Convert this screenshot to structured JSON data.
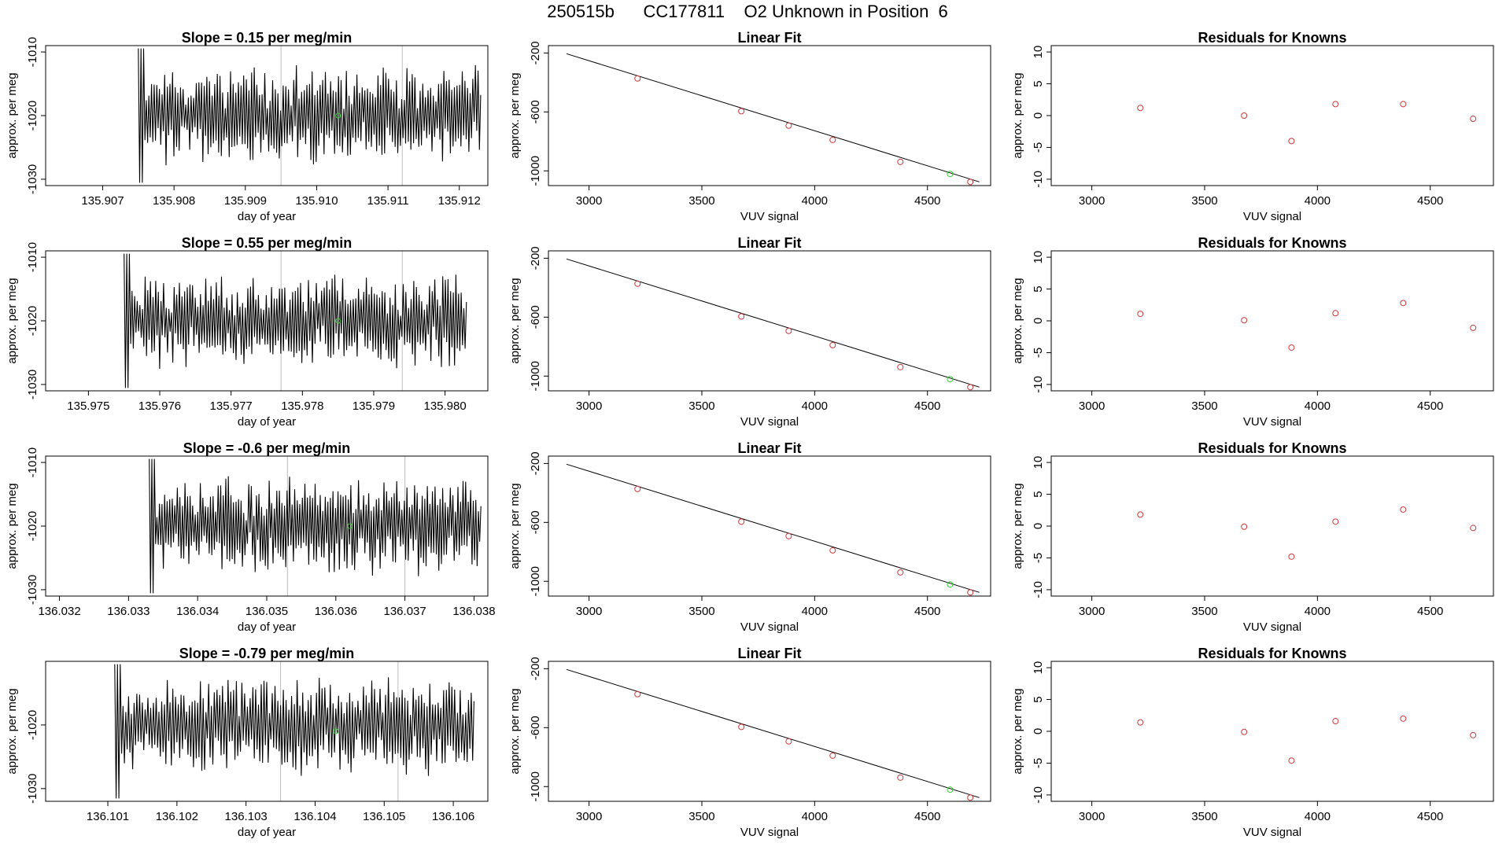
{
  "page": {
    "title": "250515b      CC177811    O2 Unknown in Position  6"
  },
  "colors": {
    "trace": "#000000",
    "known_point": "#cd3a3a",
    "unknown_point": "#33cc33",
    "marker_line": "#bdbdbd",
    "fit_line": "#000000"
  },
  "chart_data": [
    {
      "type": "line",
      "row": 0,
      "panel": "timeseries",
      "title": "Slope =  0.15  per meg/min",
      "xlabel": "day of year",
      "ylabel": "approx. per meg",
      "xlim": [
        135.9062,
        135.9124
      ],
      "ylim": [
        -1031,
        -1009
      ],
      "xticks": [
        135.907,
        135.908,
        135.909,
        135.91,
        135.911,
        135.912
      ],
      "xtick_labels": [
        "135.907",
        "135.908",
        "135.909",
        "135.910",
        "135.911",
        "135.912"
      ],
      "yticks": [
        -1010,
        -1020,
        -1030
      ],
      "ytick_labels": [
        "-1010",
        "-1020",
        "-1030"
      ],
      "trace_start": 135.9075,
      "trace_end": 135.9123,
      "trace_mean": -1020,
      "trace_amp": 6,
      "seed": 11,
      "markers": [
        135.9095,
        135.9112
      ],
      "unknown_point": {
        "x": 135.9103,
        "y": -1020
      }
    },
    {
      "type": "scatter",
      "row": 0,
      "panel": "fit",
      "title": "Linear Fit",
      "xlabel": "VUV signal",
      "ylabel": "approx. per meg",
      "xlim": [
        2820,
        4780
      ],
      "ylim": [
        -1100,
        -150
      ],
      "xticks": [
        3000,
        3500,
        4000,
        4500
      ],
      "xtick_labels": [
        "3000",
        "3500",
        "4000",
        "4500"
      ],
      "yticks": [
        -200,
        -600,
        -1000
      ],
      "ytick_labels": [
        "-200",
        "-600",
        "-1000"
      ],
      "fit_line": {
        "x": [
          2900,
          4730
        ],
        "y": [
          -205,
          -1075
        ]
      },
      "known": {
        "x": [
          3215,
          3675,
          3885,
          4080,
          4380,
          4690
        ],
        "y": [
          -373,
          -595,
          -693,
          -790,
          -939,
          -1075
        ]
      },
      "unknown": {
        "x": [
          4600
        ],
        "y": [
          -1021
        ]
      }
    },
    {
      "type": "scatter",
      "row": 0,
      "panel": "residuals",
      "title": "Residuals for Knowns",
      "xlabel": "VUV signal",
      "ylabel": "approx. per meg",
      "xlim": [
        2820,
        4780
      ],
      "ylim": [
        -11,
        11
      ],
      "xticks": [
        3000,
        3500,
        4000,
        4500
      ],
      "xtick_labels": [
        "3000",
        "3500",
        "4000",
        "4500"
      ],
      "yticks": [
        10,
        5,
        0,
        -5,
        -10
      ],
      "ytick_labels": [
        "10",
        "5",
        "0",
        "-5",
        "-10"
      ],
      "known": {
        "x": [
          3215,
          3675,
          3885,
          4080,
          4380,
          4690
        ],
        "y": [
          1.2,
          0,
          -4,
          1.8,
          1.8,
          -0.5
        ]
      }
    },
    {
      "type": "line",
      "row": 1,
      "panel": "timeseries",
      "title": "Slope =  0.55  per meg/min",
      "xlabel": "day of year",
      "ylabel": "approx. per meg",
      "xlim": [
        135.9744,
        135.9806
      ],
      "ylim": [
        -1031,
        -1009
      ],
      "xticks": [
        135.975,
        135.976,
        135.977,
        135.978,
        135.979,
        135.98
      ],
      "xtick_labels": [
        "135.975",
        "135.976",
        "135.977",
        "135.978",
        "135.979",
        "135.980"
      ],
      "yticks": [
        -1010,
        -1020,
        -1030
      ],
      "ytick_labels": [
        "-1010",
        "-1020",
        "-1030"
      ],
      "trace_start": 135.9755,
      "trace_end": 135.9803,
      "trace_mean": -1020,
      "trace_amp": 6,
      "seed": 23,
      "markers": [
        135.9777,
        135.9794
      ],
      "unknown_point": {
        "x": 135.9785,
        "y": -1020
      }
    },
    {
      "type": "scatter",
      "row": 1,
      "panel": "fit",
      "title": "Linear Fit",
      "xlabel": "VUV signal",
      "ylabel": "approx. per meg",
      "xlim": [
        2820,
        4780
      ],
      "ylim": [
        -1100,
        -150
      ],
      "xticks": [
        3000,
        3500,
        4000,
        4500
      ],
      "xtick_labels": [
        "3000",
        "3500",
        "4000",
        "4500"
      ],
      "yticks": [
        -200,
        -600,
        -1000
      ],
      "ytick_labels": [
        "-200",
        "-600",
        "-1000"
      ],
      "fit_line": {
        "x": [
          2900,
          4730
        ],
        "y": [
          -205,
          -1075
        ]
      },
      "known": {
        "x": [
          3215,
          3675,
          3885,
          4080,
          4380,
          4690
        ],
        "y": [
          -373,
          -595,
          -693,
          -790,
          -939,
          -1075
        ]
      },
      "unknown": {
        "x": [
          4600
        ],
        "y": [
          -1021
        ]
      }
    },
    {
      "type": "scatter",
      "row": 1,
      "panel": "residuals",
      "title": "Residuals for Knowns",
      "xlabel": "VUV signal",
      "ylabel": "approx. per meg",
      "xlim": [
        2820,
        4780
      ],
      "ylim": [
        -11,
        11
      ],
      "xticks": [
        3000,
        3500,
        4000,
        4500
      ],
      "xtick_labels": [
        "3000",
        "3500",
        "4000",
        "4500"
      ],
      "yticks": [
        10,
        5,
        0,
        -5,
        -10
      ],
      "ytick_labels": [
        "10",
        "5",
        "0",
        "-5",
        "-10"
      ],
      "known": {
        "x": [
          3215,
          3675,
          3885,
          4080,
          4380,
          4690
        ],
        "y": [
          1.1,
          0.1,
          -4.2,
          1.2,
          2.8,
          -1.1
        ]
      }
    },
    {
      "type": "line",
      "row": 2,
      "panel": "timeseries",
      "title": "Slope =  -0.6  per meg/min",
      "xlabel": "day of year",
      "ylabel": "approx. per meg",
      "xlim": [
        136.0318,
        136.0382
      ],
      "ylim": [
        -1031,
        -1009
      ],
      "xticks": [
        136.032,
        136.033,
        136.034,
        136.035,
        136.036,
        136.037,
        136.038
      ],
      "xtick_labels": [
        "136.032",
        "136.033",
        "136.034",
        "136.035",
        "136.036",
        "136.037",
        "136.038"
      ],
      "yticks": [
        -1010,
        -1020,
        -1030
      ],
      "ytick_labels": [
        "-1010",
        "-1020",
        "-1030"
      ],
      "trace_start": 136.0333,
      "trace_end": 136.0381,
      "trace_mean": -1020,
      "trace_amp": 6,
      "seed": 37,
      "markers": [
        136.0353,
        136.037
      ],
      "unknown_point": {
        "x": 136.0362,
        "y": -1020
      }
    },
    {
      "type": "scatter",
      "row": 2,
      "panel": "fit",
      "title": "Linear Fit",
      "xlabel": "VUV signal",
      "ylabel": "approx. per meg",
      "xlim": [
        2820,
        4780
      ],
      "ylim": [
        -1100,
        -150
      ],
      "xticks": [
        3000,
        3500,
        4000,
        4500
      ],
      "xtick_labels": [
        "3000",
        "3500",
        "4000",
        "4500"
      ],
      "yticks": [
        -200,
        -600,
        -1000
      ],
      "ytick_labels": [
        "-200",
        "-600",
        "-1000"
      ],
      "fit_line": {
        "x": [
          2900,
          4730
        ],
        "y": [
          -205,
          -1075
        ]
      },
      "known": {
        "x": [
          3215,
          3675,
          3885,
          4080,
          4380,
          4690
        ],
        "y": [
          -373,
          -595,
          -693,
          -790,
          -939,
          -1075
        ]
      },
      "unknown": {
        "x": [
          4600
        ],
        "y": [
          -1021
        ]
      }
    },
    {
      "type": "scatter",
      "row": 2,
      "panel": "residuals",
      "title": "Residuals for Knowns",
      "xlabel": "VUV signal",
      "ylabel": "approx. per meg",
      "xlim": [
        2820,
        4780
      ],
      "ylim": [
        -11,
        11
      ],
      "xticks": [
        3000,
        3500,
        4000,
        4500
      ],
      "xtick_labels": [
        "3000",
        "3500",
        "4000",
        "4500"
      ],
      "yticks": [
        10,
        5,
        0,
        -5,
        -10
      ],
      "ytick_labels": [
        "10",
        "5",
        "0",
        "-5",
        "-10"
      ],
      "known": {
        "x": [
          3215,
          3675,
          3885,
          4080,
          4380,
          4690
        ],
        "y": [
          1.8,
          -0.1,
          -4.8,
          0.7,
          2.6,
          -0.3
        ]
      }
    },
    {
      "type": "line",
      "row": 3,
      "panel": "timeseries",
      "title": "Slope =  -0.79  per meg/min",
      "xlabel": "day of year",
      "ylabel": "approx. per meg",
      "xlim": [
        136.1001,
        136.1065
      ],
      "ylim": [
        -1032,
        -1010
      ],
      "xticks": [
        136.101,
        136.102,
        136.103,
        136.104,
        136.105,
        136.106
      ],
      "xtick_labels": [
        "136.101",
        "136.102",
        "136.103",
        "136.104",
        "136.105",
        "136.106"
      ],
      "yticks": [
        -1020,
        -1030
      ],
      "ytick_labels": [
        "-1020",
        "-1030"
      ],
      "trace_start": 136.1011,
      "trace_end": 136.1063,
      "trace_mean": -1020,
      "trace_amp": 6,
      "seed": 53,
      "markers": [
        136.1035,
        136.1052
      ],
      "unknown_point": {
        "x": 136.1043,
        "y": -1021
      }
    },
    {
      "type": "scatter",
      "row": 3,
      "panel": "fit",
      "title": "Linear Fit",
      "xlabel": "VUV signal",
      "ylabel": "approx. per meg",
      "xlim": [
        2820,
        4780
      ],
      "ylim": [
        -1100,
        -150
      ],
      "xticks": [
        3000,
        3500,
        4000,
        4500
      ],
      "xtick_labels": [
        "3000",
        "3500",
        "4000",
        "4500"
      ],
      "yticks": [
        -200,
        -600,
        -1000
      ],
      "ytick_labels": [
        "-200",
        "-600",
        "-1000"
      ],
      "fit_line": {
        "x": [
          2900,
          4730
        ],
        "y": [
          -205,
          -1075
        ]
      },
      "known": {
        "x": [
          3215,
          3675,
          3885,
          4080,
          4380,
          4690
        ],
        "y": [
          -373,
          -595,
          -693,
          -790,
          -939,
          -1075
        ]
      },
      "unknown": {
        "x": [
          4600
        ],
        "y": [
          -1021
        ]
      }
    },
    {
      "type": "scatter",
      "row": 3,
      "panel": "residuals",
      "title": "Residuals for Knowns",
      "xlabel": "VUV signal",
      "ylabel": "approx. per meg",
      "xlim": [
        2820,
        4780
      ],
      "ylim": [
        -11,
        11
      ],
      "xticks": [
        3000,
        3500,
        4000,
        4500
      ],
      "xtick_labels": [
        "3000",
        "3500",
        "4000",
        "4500"
      ],
      "yticks": [
        10,
        5,
        0,
        -5,
        -10
      ],
      "ytick_labels": [
        "10",
        "5",
        "0",
        "-5",
        "-10"
      ],
      "known": {
        "x": [
          3215,
          3675,
          3885,
          4080,
          4380,
          4690
        ],
        "y": [
          1.4,
          -0.1,
          -4.6,
          1.6,
          2.0,
          -0.6
        ]
      }
    }
  ]
}
